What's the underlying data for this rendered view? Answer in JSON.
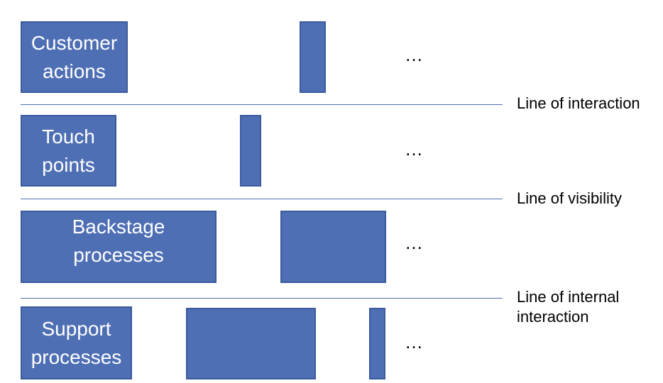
{
  "lanes": [
    {
      "label": "Customer\nactions",
      "ellipsis": "…"
    },
    {
      "label": "Touch\npoints",
      "ellipsis": "…"
    },
    {
      "label": "Backstage\nprocesses",
      "ellipsis": "…"
    },
    {
      "label": "Support\nprocesses",
      "ellipsis": "…"
    }
  ],
  "lines": [
    {
      "label": "Line of interaction"
    },
    {
      "label": "Line of visibility"
    },
    {
      "label": "Line of internal\ninteraction"
    }
  ],
  "colors": {
    "box_fill": "#4f6fb5",
    "box_border": "#3b5a9e",
    "line": "#4f6fb5"
  }
}
